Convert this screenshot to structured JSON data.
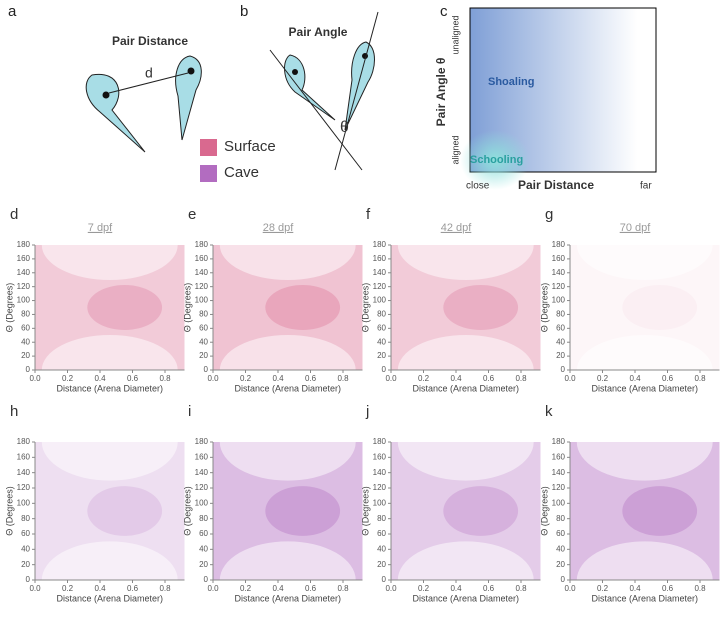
{
  "panels": {
    "a": {
      "label": "a",
      "title": "Pair Distance",
      "symbol": "d"
    },
    "b": {
      "label": "b",
      "title": "Pair Angle",
      "symbol": "θ"
    },
    "legend": [
      {
        "name": "Surface",
        "color": "#d9698f"
      },
      {
        "name": "Cave",
        "color": "#b26cc0"
      }
    ],
    "c": {
      "label": "c",
      "y_label": "Pair Angle θ",
      "y_top": "unaligned",
      "y_bottom": "aligned",
      "x_label": "Pair Distance",
      "x_left": "close",
      "x_right": "far",
      "region_top": "Shoaling",
      "region_bottom": "Schooling"
    }
  },
  "density_plots": {
    "x_label": "Distance (Arena Diameter)",
    "y_label": "Θ (Degrees)",
    "xlim": [
      0,
      0.92
    ],
    "ylim": [
      0,
      180
    ],
    "xticks": [
      {
        "value": 0,
        "label": "0.0"
      },
      {
        "value": 0.2,
        "label": "0.2"
      },
      {
        "value": 0.4,
        "label": "0.4"
      },
      {
        "value": 0.6,
        "label": "0.6"
      },
      {
        "value": 0.8,
        "label": "0.8"
      }
    ],
    "yticks": [
      0,
      20,
      40,
      60,
      80,
      100,
      120,
      140,
      160,
      180
    ],
    "columns": [
      "7 dpf",
      "28 dpf",
      "42 dpf",
      "70 dpf"
    ],
    "rows": [
      [
        "d",
        "e",
        "f",
        "g"
      ],
      [
        "h",
        "i",
        "j",
        "k"
      ]
    ]
  }
}
